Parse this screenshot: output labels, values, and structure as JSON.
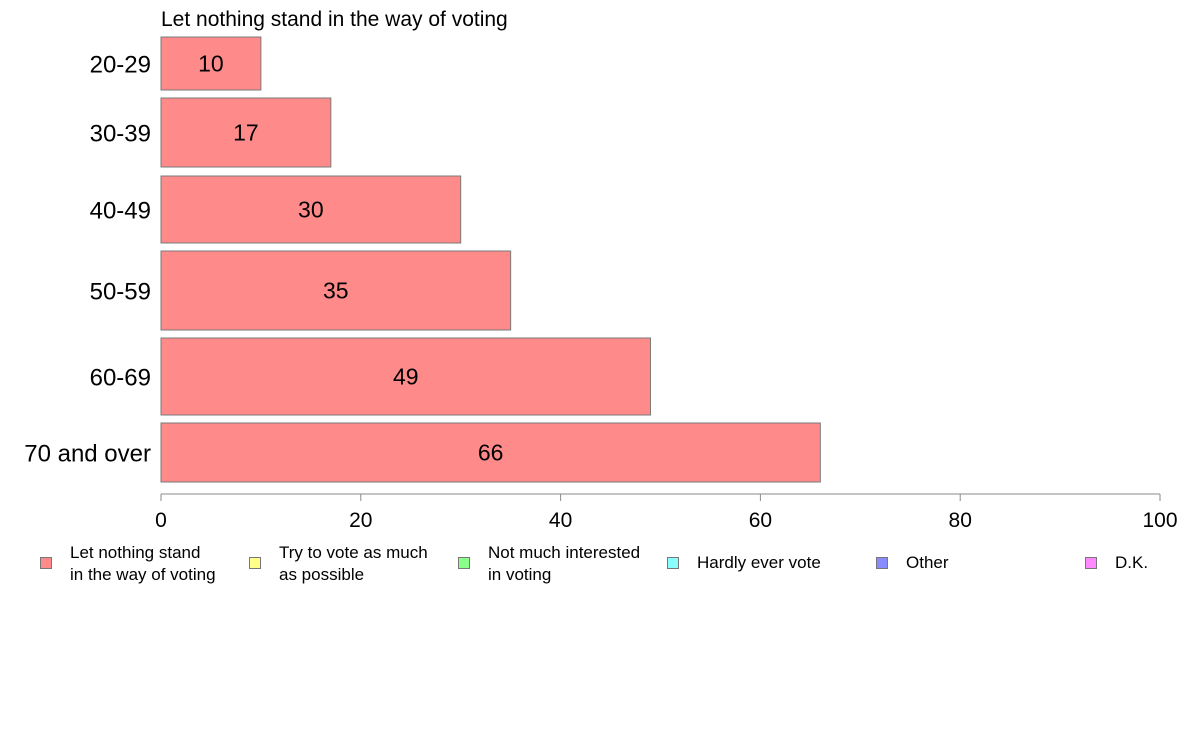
{
  "chart_data": {
    "type": "bar",
    "orientation": "horizontal",
    "title": "Let nothing stand in the way of voting",
    "categories": [
      "20-29",
      "30-39",
      "40-49",
      "50-59",
      "60-69",
      "70 and over"
    ],
    "values": [
      10,
      17,
      30,
      35,
      49,
      66
    ],
    "xlim": [
      0,
      100
    ],
    "xticks": [
      "0",
      "20",
      "40",
      "60",
      "80",
      "100"
    ],
    "xlabel": "",
    "ylabel": "",
    "grid": false,
    "legend_placement": "bottom",
    "bar_color": "#ff8a8a",
    "legend": [
      {
        "label": "Let nothing stand\nin the way of voting",
        "color": "#ff8a8a"
      },
      {
        "label": "Try to vote as much\nas possible",
        "color": "#ffff8a"
      },
      {
        "label": "Not much interested\nin voting",
        "color": "#8aff8a"
      },
      {
        "label": "Hardly ever vote",
        "color": "#8affff"
      },
      {
        "label": "Other",
        "color": "#8a8aff"
      },
      {
        "label": "D.K.",
        "color": "#ff8aff"
      }
    ]
  }
}
